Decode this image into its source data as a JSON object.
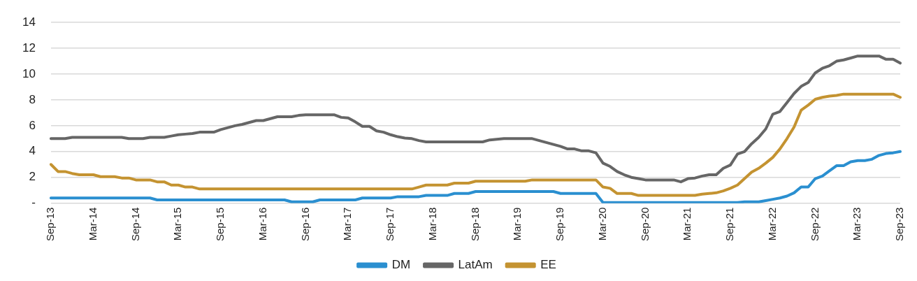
{
  "chart_data": {
    "type": "line",
    "categories": [
      "Sep-13",
      null,
      null,
      null,
      null,
      null,
      "Mar-14",
      null,
      null,
      null,
      null,
      null,
      "Sep-14",
      null,
      null,
      null,
      null,
      null,
      "Mar-15",
      null,
      null,
      null,
      null,
      null,
      "Sep-15",
      null,
      null,
      null,
      null,
      null,
      "Mar-16",
      null,
      null,
      null,
      null,
      null,
      "Sep-16",
      null,
      null,
      null,
      null,
      null,
      "Mar-17",
      null,
      null,
      null,
      null,
      null,
      "Sep-17",
      null,
      null,
      null,
      null,
      null,
      "Mar-18",
      null,
      null,
      null,
      null,
      null,
      "Sep-18",
      null,
      null,
      null,
      null,
      null,
      "Mar-19",
      null,
      null,
      null,
      null,
      null,
      "Sep-19",
      null,
      null,
      null,
      null,
      null,
      "Mar-20",
      null,
      null,
      null,
      null,
      null,
      "Sep-20",
      null,
      null,
      null,
      null,
      null,
      "Mar-21",
      null,
      null,
      null,
      null,
      null,
      "Sep-21",
      null,
      null,
      null,
      null,
      null,
      "Mar-22",
      null,
      null,
      null,
      null,
      null,
      "Sep-22",
      null,
      null,
      null,
      null,
      null,
      "Mar-23",
      null,
      null,
      null,
      null,
      null,
      "Sep-23"
    ],
    "series": [
      {
        "name": "DM",
        "color": "#2a8fd0",
        "values": [
          0.4,
          0.4,
          0.4,
          0.4,
          0.4,
          0.4,
          0.4,
          0.4,
          0.4,
          0.4,
          0.4,
          0.4,
          0.4,
          0.4,
          0.4,
          0.25,
          0.25,
          0.25,
          0.25,
          0.25,
          0.25,
          0.25,
          0.25,
          0.25,
          0.25,
          0.25,
          0.25,
          0.25,
          0.25,
          0.25,
          0.25,
          0.25,
          0.25,
          0.25,
          0.1,
          0.1,
          0.1,
          0.1,
          0.25,
          0.25,
          0.25,
          0.25,
          0.25,
          0.25,
          0.4,
          0.4,
          0.4,
          0.4,
          0.4,
          0.5,
          0.5,
          0.5,
          0.5,
          0.6,
          0.6,
          0.6,
          0.6,
          0.75,
          0.75,
          0.75,
          0.9,
          0.9,
          0.9,
          0.9,
          0.9,
          0.9,
          0.9,
          0.9,
          0.9,
          0.9,
          0.9,
          0.9,
          0.75,
          0.75,
          0.75,
          0.75,
          0.75,
          0.75,
          0.05,
          0.05,
          0.05,
          0.05,
          0.05,
          0.05,
          0.05,
          0.05,
          0.05,
          0.05,
          0.05,
          0.05,
          0.05,
          0.05,
          0.05,
          0.05,
          0.05,
          0.05,
          0.05,
          0.05,
          0.1,
          0.1,
          0.1,
          0.2,
          0.3,
          0.4,
          0.55,
          0.8,
          1.25,
          1.25,
          1.9,
          2.1,
          2.5,
          2.9,
          2.9,
          3.2,
          3.3,
          3.3,
          3.4,
          3.7,
          3.85,
          3.9,
          4.0
        ]
      },
      {
        "name": "LatAm",
        "color": "#666666",
        "values": [
          5.0,
          5.0,
          5.0,
          5.1,
          5.1,
          5.1,
          5.1,
          5.1,
          5.1,
          5.1,
          5.1,
          5.0,
          5.0,
          5.0,
          5.1,
          5.1,
          5.1,
          5.2,
          5.3,
          5.35,
          5.4,
          5.5,
          5.5,
          5.5,
          5.7,
          5.85,
          6.0,
          6.1,
          6.25,
          6.4,
          6.4,
          6.55,
          6.7,
          6.7,
          6.7,
          6.8,
          6.85,
          6.85,
          6.85,
          6.85,
          6.85,
          6.65,
          6.6,
          6.3,
          5.95,
          5.95,
          5.6,
          5.5,
          5.3,
          5.15,
          5.05,
          5.0,
          4.85,
          4.75,
          4.75,
          4.75,
          4.75,
          4.75,
          4.75,
          4.75,
          4.75,
          4.75,
          4.9,
          4.95,
          5.0,
          5.0,
          5.0,
          5.0,
          5.0,
          4.85,
          4.7,
          4.55,
          4.4,
          4.2,
          4.2,
          4.05,
          4.05,
          3.9,
          3.1,
          2.85,
          2.45,
          2.2,
          2.0,
          1.9,
          1.8,
          1.8,
          1.8,
          1.8,
          1.8,
          1.65,
          1.9,
          1.95,
          2.1,
          2.2,
          2.2,
          2.7,
          2.95,
          3.8,
          4.0,
          4.6,
          5.1,
          5.75,
          6.9,
          7.1,
          7.8,
          8.5,
          9.05,
          9.35,
          10.1,
          10.45,
          10.65,
          11.0,
          11.1,
          11.25,
          11.4,
          11.4,
          11.4,
          11.4,
          11.15,
          11.15,
          10.85
        ]
      },
      {
        "name": "EE",
        "color": "#c49331",
        "values": [
          3.0,
          2.45,
          2.45,
          2.3,
          2.2,
          2.2,
          2.2,
          2.05,
          2.05,
          2.05,
          1.95,
          1.95,
          1.8,
          1.8,
          1.8,
          1.65,
          1.65,
          1.4,
          1.4,
          1.25,
          1.25,
          1.1,
          1.1,
          1.1,
          1.1,
          1.1,
          1.1,
          1.1,
          1.1,
          1.1,
          1.1,
          1.1,
          1.1,
          1.1,
          1.1,
          1.1,
          1.1,
          1.1,
          1.1,
          1.1,
          1.1,
          1.1,
          1.1,
          1.1,
          1.1,
          1.1,
          1.1,
          1.1,
          1.1,
          1.1,
          1.1,
          1.1,
          1.25,
          1.4,
          1.4,
          1.4,
          1.4,
          1.55,
          1.55,
          1.55,
          1.7,
          1.7,
          1.7,
          1.7,
          1.7,
          1.7,
          1.7,
          1.7,
          1.8,
          1.8,
          1.8,
          1.8,
          1.8,
          1.8,
          1.8,
          1.8,
          1.8,
          1.8,
          1.25,
          1.15,
          0.75,
          0.75,
          0.75,
          0.6,
          0.6,
          0.6,
          0.6,
          0.6,
          0.6,
          0.6,
          0.6,
          0.6,
          0.7,
          0.75,
          0.8,
          0.95,
          1.15,
          1.4,
          1.9,
          2.4,
          2.7,
          3.1,
          3.55,
          4.2,
          5.0,
          5.9,
          7.2,
          7.6,
          8.05,
          8.2,
          8.3,
          8.35,
          8.45,
          8.45,
          8.45,
          8.45,
          8.45,
          8.45,
          8.45,
          8.45,
          8.2
        ]
      }
    ],
    "ylim": [
      0,
      14
    ],
    "yticks": [
      {
        "value": 0,
        "label": "-"
      },
      2,
      4,
      6,
      8,
      10,
      12,
      14
    ],
    "grid": "y",
    "legend": "bottom",
    "marker": "none",
    "line_style": "solid"
  }
}
